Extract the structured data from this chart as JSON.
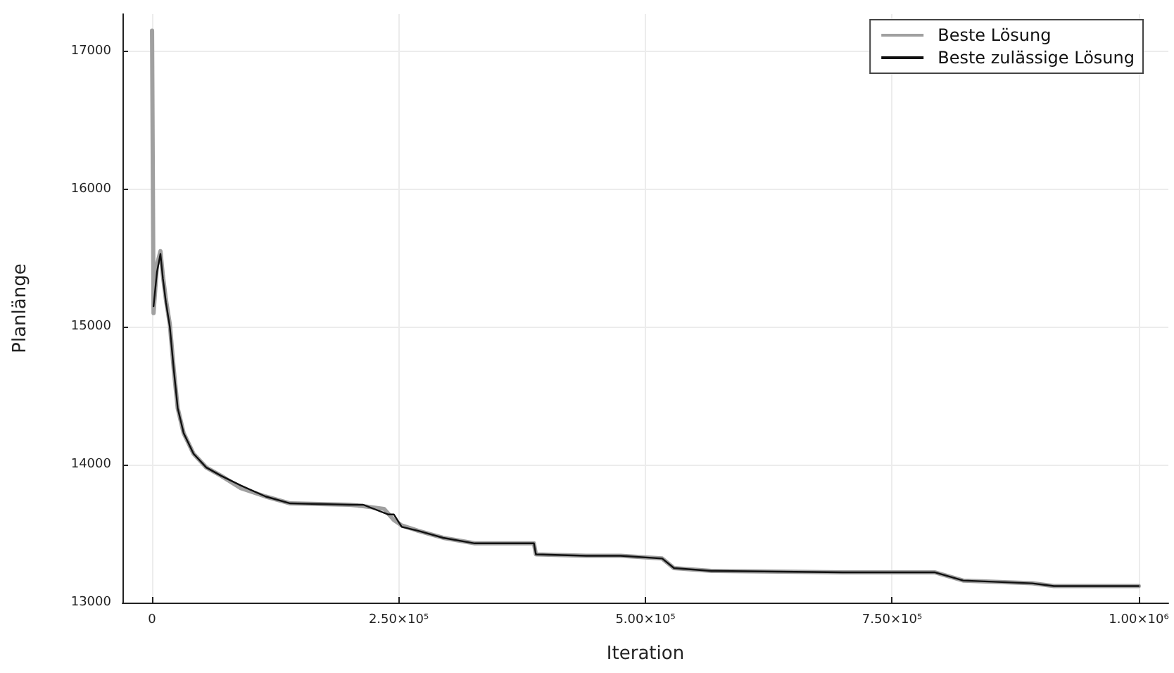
{
  "chart_data": {
    "type": "line",
    "xlabel": "Iteration",
    "ylabel": "Planlänge",
    "xlim": [
      -30000,
      1030000
    ],
    "ylim": [
      13000,
      17270
    ],
    "xticks": [
      0,
      {
        "value": 250000,
        "label": "2.50×10⁵"
      },
      {
        "value": 500000,
        "label": "5.00×10⁵"
      },
      {
        "value": 750000,
        "label": "7.50×10⁵"
      },
      {
        "value": 1000000,
        "label": "1.00×10⁶"
      }
    ],
    "yticks": [
      13000,
      14000,
      15000,
      16000,
      17000
    ],
    "grid": true,
    "legend": "top right",
    "line_style": "solid",
    "marker": "none",
    "series": [
      {
        "name": "Beste Lösung",
        "color": "#a0a0a0",
        "x": [
          0,
          1500,
          5000,
          8500,
          11000,
          14000,
          18000,
          22000,
          26000,
          32000,
          42000,
          55000,
          70000,
          90000,
          115000,
          140000,
          200000,
          214000,
          235000,
          245000,
          253000,
          270000,
          295000,
          327000,
          387000,
          389000,
          440000,
          475000,
          517000,
          529000,
          567000,
          700000,
          793000,
          822000,
          892000,
          914000,
          1000000
        ],
        "values": [
          17150,
          15100,
          15450,
          15550,
          15370,
          15200,
          15020,
          14690,
          14410,
          14230,
          14080,
          13980,
          13920,
          13830,
          13770,
          13720,
          13710,
          13700,
          13680,
          13600,
          13560,
          13520,
          13470,
          13430,
          13430,
          13350,
          13340,
          13340,
          13320,
          13250,
          13230,
          13220,
          13220,
          13160,
          13140,
          13120,
          13120
        ]
      },
      {
        "name": "Beste zulässige Lösung",
        "color": "#101010",
        "x": [
          1500,
          5000,
          8500,
          11000,
          14000,
          18000,
          22000,
          26000,
          32000,
          42000,
          55000,
          70000,
          90000,
          115000,
          140000,
          200000,
          214000,
          239000,
          245000,
          253000,
          270000,
          295000,
          327000,
          387000,
          389000,
          440000,
          475000,
          517000,
          529000,
          567000,
          700000,
          793000,
          822000,
          892000,
          914000,
          1000000
        ],
        "values": [
          15150,
          15400,
          15530,
          15350,
          15180,
          15000,
          14690,
          14410,
          14230,
          14080,
          13980,
          13920,
          13850,
          13770,
          13720,
          13710,
          13710,
          13640,
          13640,
          13550,
          13520,
          13470,
          13430,
          13430,
          13350,
          13340,
          13340,
          13320,
          13250,
          13230,
          13220,
          13220,
          13160,
          13140,
          13120,
          13120
        ]
      }
    ]
  }
}
